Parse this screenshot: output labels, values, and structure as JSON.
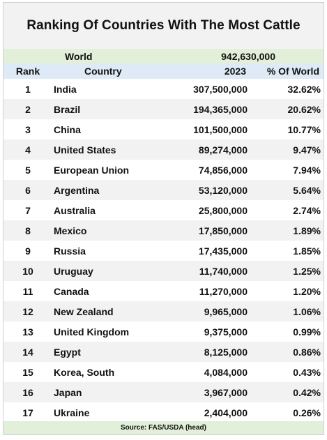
{
  "chart_data": {
    "type": "table",
    "title": "Ranking Of Countries With The Most Cattle",
    "world": {
      "label": "World",
      "value": "942,630,000"
    },
    "columns": [
      "Rank",
      "Country",
      "2023",
      "% Of World"
    ],
    "rows": [
      {
        "rank": "1",
        "country": "India",
        "value": "307,500,000",
        "pct": "32.62%"
      },
      {
        "rank": "2",
        "country": "Brazil",
        "value": "194,365,000",
        "pct": "20.62%"
      },
      {
        "rank": "3",
        "country": "China",
        "value": "101,500,000",
        "pct": "10.77%"
      },
      {
        "rank": "4",
        "country": "United States",
        "value": "89,274,000",
        "pct": "9.47%"
      },
      {
        "rank": "5",
        "country": "European Union",
        "value": "74,856,000",
        "pct": "7.94%"
      },
      {
        "rank": "6",
        "country": "Argentina",
        "value": "53,120,000",
        "pct": "5.64%"
      },
      {
        "rank": "7",
        "country": "Australia",
        "value": "25,800,000",
        "pct": "2.74%"
      },
      {
        "rank": "8",
        "country": "Mexico",
        "value": "17,850,000",
        "pct": "1.89%"
      },
      {
        "rank": "9",
        "country": "Russia",
        "value": "17,435,000",
        "pct": "1.85%"
      },
      {
        "rank": "10",
        "country": "Uruguay",
        "value": "11,740,000",
        "pct": "1.25%"
      },
      {
        "rank": "11",
        "country": "Canada",
        "value": "11,270,000",
        "pct": "1.20%"
      },
      {
        "rank": "12",
        "country": "New Zealand",
        "value": "9,965,000",
        "pct": "1.06%"
      },
      {
        "rank": "13",
        "country": "United Kingdom",
        "value": "9,375,000",
        "pct": "0.99%"
      },
      {
        "rank": "14",
        "country": "Egypt",
        "value": "8,125,000",
        "pct": "0.86%"
      },
      {
        "rank": "15",
        "country": "Korea, South",
        "value": "4,084,000",
        "pct": "0.43%"
      },
      {
        "rank": "16",
        "country": "Japan",
        "value": "3,967,000",
        "pct": "0.42%"
      },
      {
        "rank": "17",
        "country": "Ukraine",
        "value": "2,404,000",
        "pct": "0.26%"
      }
    ],
    "source": "Source:  FAS/USDA (head)"
  },
  "colors": {
    "title_band": "#f2f2f2",
    "world_band": "#e2efd9",
    "header_band": "#deeaf6",
    "alt_row": "#f2f2f2"
  }
}
